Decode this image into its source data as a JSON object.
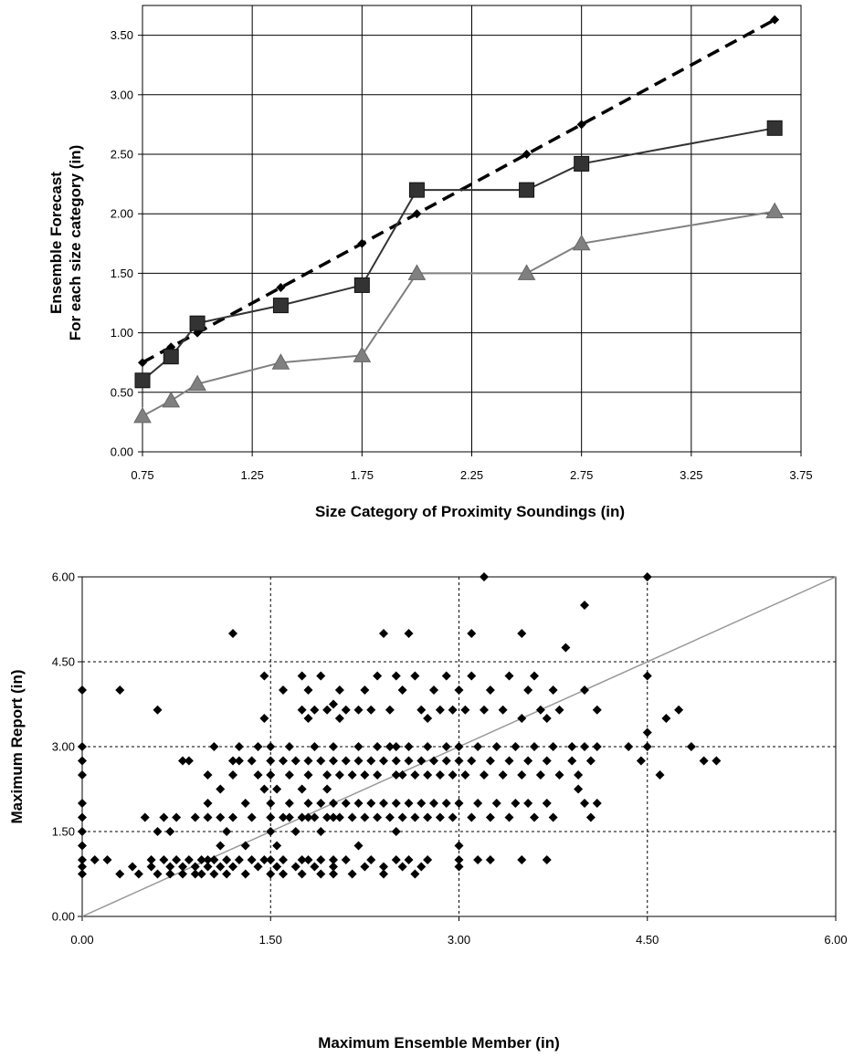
{
  "chart_data": [
    {
      "type": "line",
      "xlabel": "Size Category of Proximity Soundings (in)",
      "ylabel_lines": [
        "Ensemble Forecast",
        "For each size category (in)"
      ],
      "xlim": [
        0.75,
        3.75
      ],
      "ylim": [
        0.0,
        3.75
      ],
      "x_ticks": [
        "0.75",
        "1.25",
        "1.75",
        "2.25",
        "2.75",
        "3.25",
        "3.75"
      ],
      "y_ticks": [
        "0.00",
        "0.50",
        "1.00",
        "1.50",
        "2.00",
        "2.50",
        "3.00",
        "3.50"
      ],
      "grid": true,
      "series": [
        {
          "marker": "diamond",
          "line": "dashed",
          "color": "#000000",
          "x": [
            0.75,
            0.88,
            1.0,
            1.38,
            1.75,
            2.0,
            2.5,
            2.75,
            3.63
          ],
          "y": [
            0.75,
            0.88,
            1.0,
            1.38,
            1.75,
            2.0,
            2.5,
            2.75,
            3.63
          ]
        },
        {
          "marker": "square",
          "line": "solid",
          "color": "#333333",
          "x": [
            0.75,
            0.88,
            1.0,
            1.38,
            1.75,
            2.0,
            2.5,
            2.75,
            3.63
          ],
          "y": [
            0.6,
            0.8,
            1.08,
            1.23,
            1.4,
            2.2,
            2.2,
            2.42,
            2.72
          ]
        },
        {
          "marker": "triangle",
          "line": "solid",
          "color": "#808080",
          "x": [
            0.75,
            0.88,
            1.0,
            1.38,
            1.75,
            2.0,
            2.5,
            2.75,
            3.63
          ],
          "y": [
            0.3,
            0.43,
            0.57,
            0.75,
            0.81,
            1.5,
            1.5,
            1.75,
            2.02
          ]
        }
      ]
    },
    {
      "type": "scatter",
      "xlabel": "Maximum Ensemble Member (in)",
      "ylabel": "Maximum Report (in)",
      "xlim": [
        0.0,
        6.0
      ],
      "ylim": [
        0.0,
        6.0
      ],
      "x_ticks": [
        "0.00",
        "1.50",
        "3.00",
        "4.50",
        "6.00"
      ],
      "y_ticks": [
        "0.00",
        "1.50",
        "3.00",
        "4.50",
        "6.00"
      ],
      "grid": "dotted",
      "reference_line": {
        "from": [
          0,
          0
        ],
        "to": [
          6,
          6
        ],
        "color": "#999999"
      },
      "points": [
        [
          0.0,
          0.75
        ],
        [
          0.0,
          0.88
        ],
        [
          0.0,
          1.0
        ],
        [
          0.0,
          1.25
        ],
        [
          0.0,
          1.5
        ],
        [
          0.0,
          1.75
        ],
        [
          0.0,
          2.0
        ],
        [
          0.0,
          2.5
        ],
        [
          0.0,
          2.75
        ],
        [
          0.0,
          3.0
        ],
        [
          0.0,
          4.0
        ],
        [
          0.1,
          1.0
        ],
        [
          0.2,
          1.0
        ],
        [
          0.3,
          4.0
        ],
        [
          0.3,
          0.75
        ],
        [
          0.4,
          0.88
        ],
        [
          0.45,
          0.75
        ],
        [
          0.5,
          1.75
        ],
        [
          0.55,
          1.0
        ],
        [
          0.55,
          0.88
        ],
        [
          0.6,
          0.75
        ],
        [
          0.6,
          1.5
        ],
        [
          0.6,
          3.65
        ],
        [
          0.65,
          1.0
        ],
        [
          0.65,
          1.75
        ],
        [
          0.7,
          0.75
        ],
        [
          0.7,
          0.88
        ],
        [
          0.7,
          1.5
        ],
        [
          0.75,
          1.0
        ],
        [
          0.75,
          1.75
        ],
        [
          0.8,
          0.75
        ],
        [
          0.8,
          0.88
        ],
        [
          0.8,
          2.75
        ],
        [
          0.85,
          1.0
        ],
        [
          0.85,
          2.75
        ],
        [
          0.9,
          0.75
        ],
        [
          0.9,
          0.88
        ],
        [
          0.9,
          1.75
        ],
        [
          0.95,
          1.0
        ],
        [
          0.95,
          0.75
        ],
        [
          1.0,
          0.88
        ],
        [
          1.0,
          1.0
        ],
        [
          1.0,
          1.75
        ],
        [
          1.0,
          2.5
        ],
        [
          1.0,
          2.0
        ],
        [
          1.05,
          0.75
        ],
        [
          1.05,
          1.0
        ],
        [
          1.05,
          3.0
        ],
        [
          1.1,
          0.88
        ],
        [
          1.1,
          1.25
        ],
        [
          1.1,
          1.75
        ],
        [
          1.1,
          2.25
        ],
        [
          1.15,
          0.75
        ],
        [
          1.15,
          1.0
        ],
        [
          1.15,
          1.5
        ],
        [
          1.2,
          5.0
        ],
        [
          1.2,
          0.88
        ],
        [
          1.2,
          1.75
        ],
        [
          1.2,
          2.5
        ],
        [
          1.2,
          2.75
        ],
        [
          1.25,
          1.0
        ],
        [
          1.25,
          2.75
        ],
        [
          1.25,
          3.0
        ],
        [
          1.3,
          0.75
        ],
        [
          1.3,
          1.25
        ],
        [
          1.3,
          2.0
        ],
        [
          1.35,
          1.0
        ],
        [
          1.35,
          1.75
        ],
        [
          1.35,
          2.75
        ],
        [
          1.4,
          0.88
        ],
        [
          1.4,
          2.5
        ],
        [
          1.4,
          3.0
        ],
        [
          1.45,
          1.0
        ],
        [
          1.45,
          2.25
        ],
        [
          1.45,
          3.5
        ],
        [
          1.45,
          4.25
        ],
        [
          1.5,
          0.75
        ],
        [
          1.5,
          1.0
        ],
        [
          1.5,
          1.5
        ],
        [
          1.5,
          1.75
        ],
        [
          1.5,
          2.0
        ],
        [
          1.5,
          2.5
        ],
        [
          1.5,
          2.75
        ],
        [
          1.5,
          3.0
        ],
        [
          1.55,
          0.88
        ],
        [
          1.55,
          1.25
        ],
        [
          1.55,
          2.25
        ],
        [
          1.6,
          0.75
        ],
        [
          1.6,
          1.0
        ],
        [
          1.6,
          1.75
        ],
        [
          1.6,
          2.75
        ],
        [
          1.6,
          4.0
        ],
        [
          1.65,
          1.75
        ],
        [
          1.65,
          2.0
        ],
        [
          1.65,
          2.5
        ],
        [
          1.65,
          3.0
        ],
        [
          1.7,
          0.88
        ],
        [
          1.7,
          1.5
        ],
        [
          1.7,
          2.75
        ],
        [
          1.75,
          0.75
        ],
        [
          1.75,
          1.0
        ],
        [
          1.75,
          1.75
        ],
        [
          1.75,
          2.25
        ],
        [
          1.75,
          3.65
        ],
        [
          1.75,
          4.25
        ],
        [
          1.8,
          1.0
        ],
        [
          1.8,
          1.75
        ],
        [
          1.8,
          2.0
        ],
        [
          1.8,
          2.5
        ],
        [
          1.8,
          2.75
        ],
        [
          1.8,
          3.5
        ],
        [
          1.8,
          4.0
        ],
        [
          1.85,
          0.88
        ],
        [
          1.85,
          1.75
        ],
        [
          1.85,
          3.0
        ],
        [
          1.85,
          3.65
        ],
        [
          1.9,
          0.75
        ],
        [
          1.9,
          1.0
        ],
        [
          1.9,
          1.5
        ],
        [
          1.9,
          2.0
        ],
        [
          1.9,
          2.75
        ],
        [
          1.9,
          4.25
        ],
        [
          1.95,
          1.75
        ],
        [
          1.95,
          2.25
        ],
        [
          1.95,
          2.5
        ],
        [
          1.95,
          3.65
        ],
        [
          2.0,
          0.75
        ],
        [
          2.0,
          0.88
        ],
        [
          2.0,
          1.0
        ],
        [
          2.0,
          1.75
        ],
        [
          2.0,
          2.0
        ],
        [
          2.0,
          2.75
        ],
        [
          2.0,
          3.0
        ],
        [
          2.0,
          3.75
        ],
        [
          2.05,
          1.75
        ],
        [
          2.05,
          2.5
        ],
        [
          2.05,
          3.5
        ],
        [
          2.05,
          4.0
        ],
        [
          2.1,
          1.0
        ],
        [
          2.1,
          2.0
        ],
        [
          2.1,
          2.75
        ],
        [
          2.1,
          3.65
        ],
        [
          2.15,
          0.75
        ],
        [
          2.15,
          1.75
        ],
        [
          2.15,
          2.5
        ],
        [
          2.2,
          1.25
        ],
        [
          2.2,
          2.0
        ],
        [
          2.2,
          2.75
        ],
        [
          2.2,
          3.0
        ],
        [
          2.2,
          3.65
        ],
        [
          2.25,
          0.88
        ],
        [
          2.25,
          1.75
        ],
        [
          2.25,
          2.5
        ],
        [
          2.25,
          4.0
        ],
        [
          2.3,
          1.0
        ],
        [
          2.3,
          2.0
        ],
        [
          2.3,
          2.75
        ],
        [
          2.3,
          3.65
        ],
        [
          2.35,
          1.75
        ],
        [
          2.35,
          2.5
        ],
        [
          2.35,
          3.0
        ],
        [
          2.35,
          4.25
        ],
        [
          2.4,
          0.75
        ],
        [
          2.4,
          0.88
        ],
        [
          2.4,
          2.0
        ],
        [
          2.4,
          2.75
        ],
        [
          2.4,
          5.0
        ],
        [
          2.45,
          1.75
        ],
        [
          2.45,
          3.0
        ],
        [
          2.45,
          3.65
        ],
        [
          2.5,
          1.0
        ],
        [
          2.5,
          1.5
        ],
        [
          2.5,
          2.0
        ],
        [
          2.5,
          2.5
        ],
        [
          2.5,
          2.75
        ],
        [
          2.5,
          3.0
        ],
        [
          2.5,
          4.25
        ],
        [
          2.55,
          0.88
        ],
        [
          2.55,
          1.75
        ],
        [
          2.55,
          2.5
        ],
        [
          2.55,
          4.0
        ],
        [
          2.6,
          1.0
        ],
        [
          2.6,
          2.0
        ],
        [
          2.6,
          2.75
        ],
        [
          2.6,
          3.0
        ],
        [
          2.6,
          5.0
        ],
        [
          2.65,
          0.75
        ],
        [
          2.65,
          1.75
        ],
        [
          2.65,
          2.5
        ],
        [
          2.65,
          4.25
        ],
        [
          2.7,
          0.88
        ],
        [
          2.7,
          2.0
        ],
        [
          2.7,
          2.75
        ],
        [
          2.7,
          3.65
        ],
        [
          2.75,
          1.0
        ],
        [
          2.75,
          1.75
        ],
        [
          2.75,
          2.5
        ],
        [
          2.75,
          3.0
        ],
        [
          2.75,
          3.5
        ],
        [
          2.8,
          2.0
        ],
        [
          2.8,
          2.75
        ],
        [
          2.8,
          4.0
        ],
        [
          2.85,
          1.75
        ],
        [
          2.85,
          2.5
        ],
        [
          2.85,
          3.65
        ],
        [
          2.9,
          2.0
        ],
        [
          2.9,
          2.75
        ],
        [
          2.9,
          3.0
        ],
        [
          2.9,
          4.25
        ],
        [
          2.95,
          1.75
        ],
        [
          2.95,
          2.5
        ],
        [
          2.95,
          3.65
        ],
        [
          3.0,
          0.88
        ],
        [
          3.0,
          1.0
        ],
        [
          3.0,
          1.25
        ],
        [
          3.0,
          2.0
        ],
        [
          3.0,
          2.75
        ],
        [
          3.0,
          3.0
        ],
        [
          3.0,
          4.0
        ],
        [
          3.05,
          2.5
        ],
        [
          3.05,
          3.65
        ],
        [
          3.1,
          1.75
        ],
        [
          3.1,
          2.75
        ],
        [
          3.1,
          4.25
        ],
        [
          3.1,
          5.0
        ],
        [
          3.15,
          1.0
        ],
        [
          3.15,
          2.0
        ],
        [
          3.15,
          3.0
        ],
        [
          3.2,
          6.0
        ],
        [
          3.2,
          2.5
        ],
        [
          3.2,
          3.65
        ],
        [
          3.25,
          1.0
        ],
        [
          3.25,
          1.75
        ],
        [
          3.25,
          2.75
        ],
        [
          3.25,
          4.0
        ],
        [
          3.3,
          2.0
        ],
        [
          3.3,
          3.0
        ],
        [
          3.35,
          2.5
        ],
        [
          3.35,
          3.65
        ],
        [
          3.4,
          1.75
        ],
        [
          3.4,
          2.75
        ],
        [
          3.4,
          4.25
        ],
        [
          3.45,
          2.0
        ],
        [
          3.45,
          3.0
        ],
        [
          3.5,
          1.0
        ],
        [
          3.5,
          2.5
        ],
        [
          3.5,
          3.5
        ],
        [
          3.5,
          5.0
        ],
        [
          3.55,
          2.0
        ],
        [
          3.55,
          2.75
        ],
        [
          3.55,
          4.0
        ],
        [
          3.6,
          1.75
        ],
        [
          3.6,
          3.0
        ],
        [
          3.6,
          4.25
        ],
        [
          3.65,
          2.5
        ],
        [
          3.65,
          3.65
        ],
        [
          3.7,
          1.0
        ],
        [
          3.7,
          2.0
        ],
        [
          3.7,
          2.75
        ],
        [
          3.7,
          3.5
        ],
        [
          3.75,
          1.75
        ],
        [
          3.75,
          3.0
        ],
        [
          3.75,
          4.0
        ],
        [
          3.8,
          2.5
        ],
        [
          3.8,
          3.65
        ],
        [
          3.85,
          4.75
        ],
        [
          3.9,
          2.75
        ],
        [
          3.9,
          3.0
        ],
        [
          3.95,
          2.25
        ],
        [
          3.95,
          2.5
        ],
        [
          4.0,
          2.0
        ],
        [
          4.0,
          3.0
        ],
        [
          4.0,
          4.0
        ],
        [
          4.0,
          5.5
        ],
        [
          4.05,
          1.75
        ],
        [
          4.05,
          2.75
        ],
        [
          4.1,
          2.0
        ],
        [
          4.1,
          3.0
        ],
        [
          4.1,
          3.65
        ],
        [
          4.35,
          3.0
        ],
        [
          4.45,
          2.75
        ],
        [
          4.5,
          6.0
        ],
        [
          4.5,
          4.25
        ],
        [
          4.5,
          3.25
        ],
        [
          4.5,
          3.0
        ],
        [
          4.6,
          2.5
        ],
        [
          4.65,
          3.5
        ],
        [
          4.75,
          3.65
        ],
        [
          4.85,
          3.0
        ],
        [
          4.95,
          2.75
        ],
        [
          5.05,
          2.75
        ]
      ]
    }
  ]
}
